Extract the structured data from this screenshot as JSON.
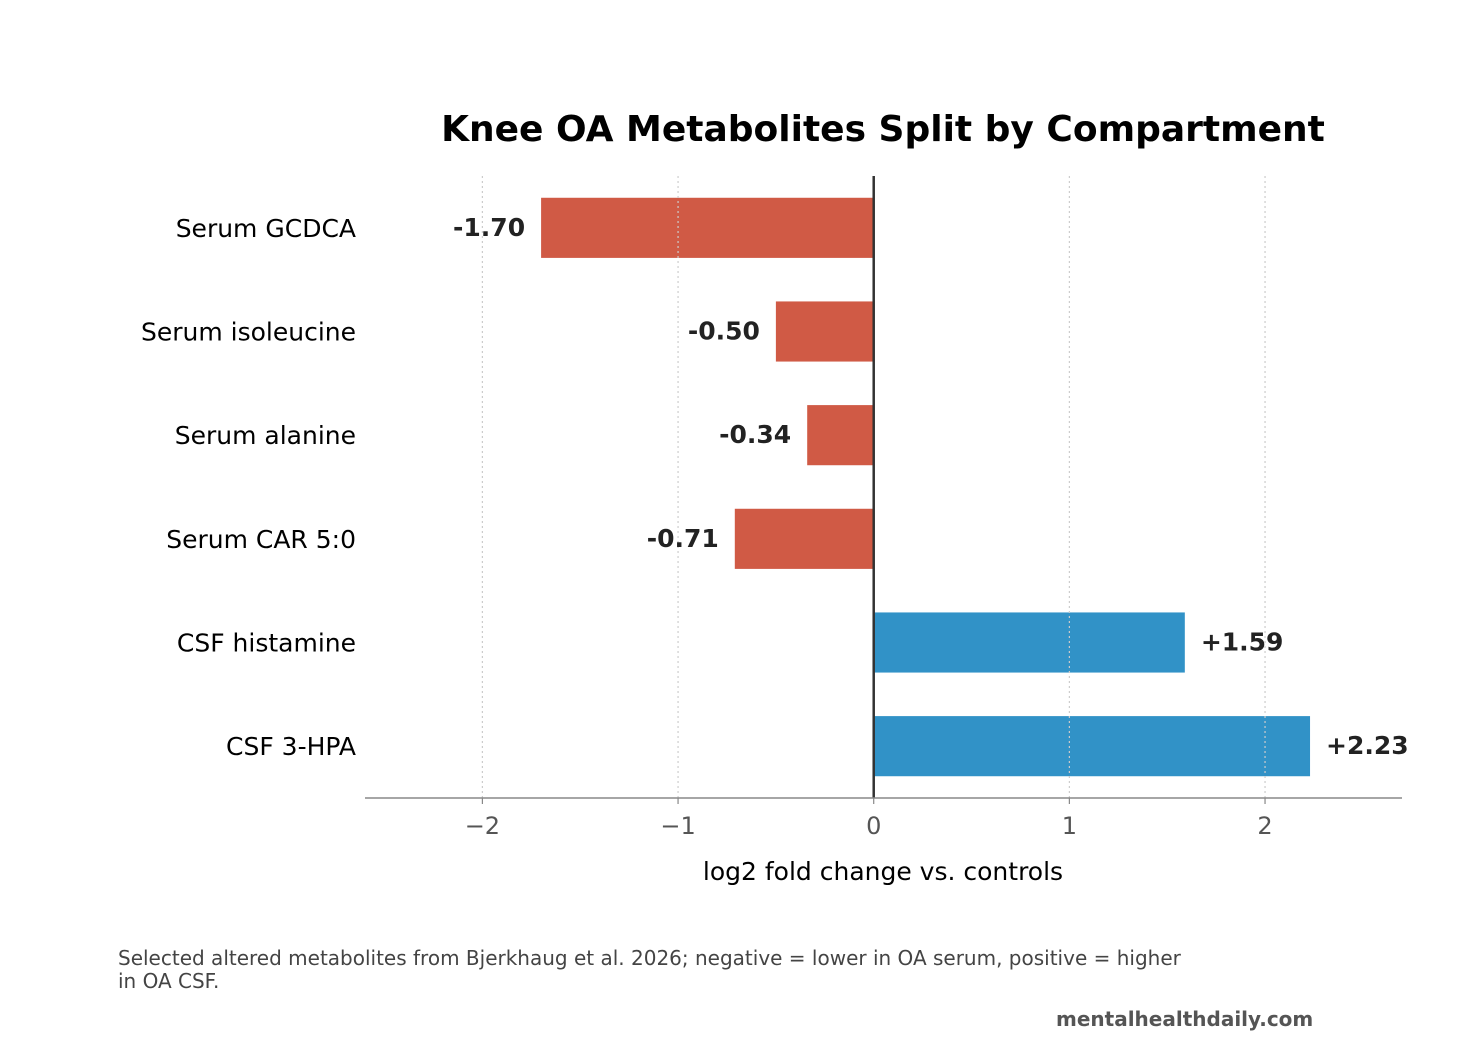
{
  "chart_data": {
    "type": "bar",
    "orientation": "horizontal",
    "title": "Knee OA Metabolites Split by Compartment",
    "xlabel": "log2 fold change vs. controls",
    "ylabel": "",
    "xlim": [
      -2.6,
      2.7
    ],
    "xticks": [
      -2,
      -1,
      0,
      1,
      2
    ],
    "xtick_labels": [
      "−2",
      "−1",
      "0",
      "1",
      "2"
    ],
    "grid": "x, dotted",
    "categories": [
      "Serum GCDCA",
      "Serum isoleucine",
      "Serum alanine",
      "Serum CAR 5:0",
      "CSF histamine",
      "CSF 3-HPA"
    ],
    "values": [
      -1.7,
      -0.5,
      -0.34,
      -0.71,
      1.59,
      2.23
    ],
    "value_labels": [
      "-1.70",
      "-0.50",
      "-0.34",
      "-0.71",
      "+1.59",
      "+2.23"
    ],
    "colors": {
      "negative": "#d05a45",
      "positive": "#3192c7",
      "zero_line": "#333333",
      "grid": "#cccccc",
      "axis": "#888888",
      "tick_text": "#555555"
    }
  },
  "caption": "Selected altered metabolites from Bjerkhaug et al. 2026; negative = lower in OA serum, positive = higher in OA CSF.",
  "watermark": "mentalhealthdaily.com"
}
